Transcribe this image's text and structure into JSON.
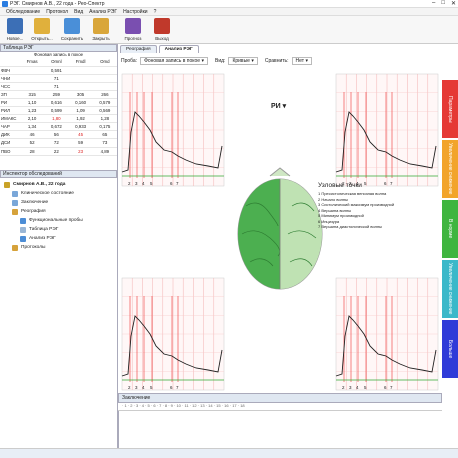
{
  "window": {
    "title": "РЭГ. Смирнов А.В., 22 года - Рео-Спектр",
    "controls": [
      "–",
      "□",
      "✕"
    ]
  },
  "menu": [
    "Обследование",
    "Протокол",
    "Вид",
    "Анализ РЭГ",
    "Настройки",
    "?"
  ],
  "toolbar": [
    {
      "label": "Новое...",
      "icon": "new-document-icon",
      "color": "#3c6fb6"
    },
    {
      "label": "Открыть...",
      "icon": "open-folder-icon",
      "color": "#e0b03c"
    },
    {
      "label": "Сохранить",
      "icon": "save-icon",
      "color": "#4a8fd8"
    },
    {
      "label": "Закрыть",
      "icon": "close-folder-icon",
      "color": "#d9a63a"
    },
    {
      "label": "Прогноз",
      "icon": "forecast-icon",
      "color": "#7a4fb0"
    },
    {
      "label": "Выход",
      "icon": "exit-icon",
      "color": "#c0392b"
    }
  ],
  "rzg_table": {
    "title": "Таблица РЭГ",
    "subtitle": "Фоновая запись в покое",
    "headers": [
      "",
      "Fmas",
      "Omnl",
      "Fmdl",
      "Omd"
    ],
    "rows": [
      {
        "name": "ФВЧ",
        "values": [
          "",
          "0,591",
          "",
          ""
        ],
        "red": [
          false,
          false,
          false,
          false
        ]
      },
      {
        "name": "ЧНИ",
        "values": [
          "",
          "71",
          "",
          ""
        ],
        "red": [
          false,
          false,
          false,
          false
        ]
      },
      {
        "name": "ЧСС",
        "values": [
          "",
          "71",
          "",
          ""
        ],
        "red": [
          false,
          false,
          false,
          false
        ]
      },
      {
        "name": "ЗП",
        "values": [
          "315",
          "259",
          "305",
          "266"
        ],
        "red": [
          false,
          false,
          false,
          false
        ]
      },
      {
        "name": "РИ",
        "values": [
          "1,10",
          "0,616",
          "0,160",
          "0,579"
        ],
        "red": [
          false,
          false,
          false,
          false
        ]
      },
      {
        "name": "РИЛ",
        "values": [
          "1,23",
          "0,599",
          "1,09",
          "0,569"
        ],
        "red": [
          false,
          false,
          false,
          false
        ]
      },
      {
        "name": "ИМАКС",
        "values": [
          "2,10",
          "1,80",
          "1,92",
          "1,28"
        ],
        "red": [
          false,
          true,
          false,
          false
        ]
      },
      {
        "name": "ЧАР",
        "values": [
          "1,34",
          "0,672",
          "0,933",
          "0,175"
        ],
        "red": [
          false,
          false,
          false,
          false
        ]
      },
      {
        "name": "ДИК",
        "values": [
          "46",
          "56",
          "45",
          "65"
        ],
        "red": [
          false,
          false,
          true,
          false
        ]
      },
      {
        "name": "ДСИ",
        "values": [
          "52",
          "72",
          "59",
          "73"
        ],
        "red": [
          false,
          false,
          false,
          false
        ]
      },
      {
        "name": "ПВО",
        "values": [
          "28",
          "22",
          "23",
          "4,89"
        ],
        "red": [
          false,
          false,
          true,
          false
        ]
      }
    ]
  },
  "inspector": {
    "title": "Инспектор обследований",
    "items": [
      {
        "label": "Смирнов А.В., 22 года",
        "level": 0,
        "bold": true,
        "color": "#c9a227"
      },
      {
        "label": "Клиническое состояние",
        "level": 1,
        "bold": false,
        "color": "#7aa7d8"
      },
      {
        "label": "Заключение",
        "level": 1,
        "bold": false,
        "color": "#7aa7d8"
      },
      {
        "label": "Реография",
        "level": 1,
        "bold": false,
        "color": "#d6a23a"
      },
      {
        "label": "Функциональные пробы",
        "level": 2,
        "bold": false,
        "color": "#4c8dd6"
      },
      {
        "label": "Таблица РЭГ",
        "level": 2,
        "bold": false,
        "color": "#9bb7d6"
      },
      {
        "label": "Анализ РЭГ",
        "level": 2,
        "bold": false,
        "color": "#4c8dd6"
      },
      {
        "label": "Протоколы",
        "level": 1,
        "bold": false,
        "color": "#d6a23a"
      }
    ]
  },
  "tabs": [
    "Реография",
    "Анализ РЭГ"
  ],
  "controls": {
    "probe_label": "Проба:",
    "probe_value": "Фоновая запись в покое",
    "view_label": "Вид:",
    "view_value": "Кривые",
    "compare_label": "Сравнить:",
    "compare_value": "Нет"
  },
  "center": {
    "index_value": "РИ"
  },
  "key_points": {
    "title": "Узловые точки",
    "items": [
      "1 Пресистолическая венозная волна",
      "2 Начало волны",
      "3 Систолический максимум производной",
      "4 Вершина волны",
      "5 Минимум производной",
      "6 Инцизура",
      "7 Вершина диастолической волны"
    ]
  },
  "curve_labels": [
    "2",
    "3",
    "4",
    "5",
    "6",
    "7"
  ],
  "side_tabs": [
    {
      "label": "Параметры",
      "color": "#e53935"
    },
    {
      "label": "Увеличение снижение",
      "color": "#f2a42b"
    },
    {
      "label": "В норме",
      "color": "#3fb53f"
    },
    {
      "label": "Увеличение снижение",
      "color": "#3bb8c9"
    },
    {
      "label": "Больше",
      "color": "#2f3bd8"
    }
  ],
  "conclusion": {
    "title": "Заключение",
    "ruler": "· 1 · 2 · 3 · 4 · 5 · 6 · 7 · 8 · 9 · 10 · 11 · 12 · 13 · 14 · 15 · 16 · 17 · 18"
  }
}
